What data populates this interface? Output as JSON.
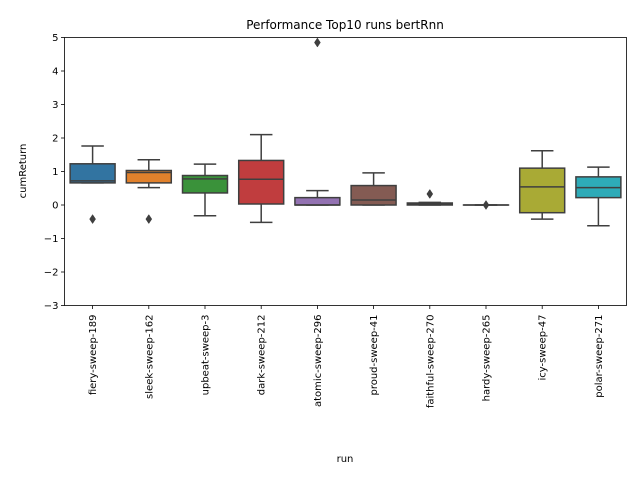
{
  "chart_data": {
    "type": "box",
    "title": "Performance Top10 runs bertRnn",
    "xlabel": "run",
    "ylabel": "cumReturn",
    "ylim": [
      -3,
      5
    ],
    "yticks": [
      -3,
      -2,
      -1,
      0,
      1,
      2,
      3,
      4,
      5
    ],
    "grid": false,
    "boxes": [
      {
        "category": "fiery-sweep-189",
        "color": "#3274a1",
        "whisker_low": 0.66,
        "q1": 0.66,
        "median": 0.72,
        "q3": 1.23,
        "whisker_high": 1.76,
        "outliers": [
          -0.42
        ]
      },
      {
        "category": "sleek-sweep-162",
        "color": "#e1812c",
        "whisker_low": 0.52,
        "q1": 0.66,
        "median": 0.97,
        "q3": 1.03,
        "whisker_high": 1.35,
        "outliers": [
          -0.42
        ]
      },
      {
        "category": "upbeat-sweep-3",
        "color": "#3a923a",
        "whisker_low": -0.32,
        "q1": 0.36,
        "median": 0.78,
        "q3": 0.88,
        "whisker_high": 1.22,
        "outliers": []
      },
      {
        "category": "dark-sweep-212",
        "color": "#c03d3e",
        "whisker_low": -0.52,
        "q1": 0.03,
        "median": 0.77,
        "q3": 1.33,
        "whisker_high": 2.1,
        "outliers": []
      },
      {
        "category": "atomic-sweep-296",
        "color": "#9372b2",
        "whisker_low": 0.0,
        "q1": 0.0,
        "median": 0.0,
        "q3": 0.22,
        "whisker_high": 0.43,
        "outliers": [
          4.85
        ]
      },
      {
        "category": "proud-sweep-41",
        "color": "#845b53",
        "whisker_low": 0.0,
        "q1": 0.0,
        "median": 0.15,
        "q3": 0.58,
        "whisker_high": 0.96,
        "outliers": []
      },
      {
        "category": "faithful-sweep-270",
        "color": "#d684bd",
        "whisker_low": 0.0,
        "q1": 0.0,
        "median": 0.03,
        "q3": 0.06,
        "whisker_high": 0.08,
        "outliers": [
          0.33
        ]
      },
      {
        "category": "hardy-sweep-265",
        "color": "#7f7f7f",
        "whisker_low": 0.0,
        "q1": 0.0,
        "median": 0.0,
        "q3": 0.0,
        "whisker_high": 0.0,
        "outliers": [
          0.0
        ]
      },
      {
        "category": "icy-sweep-47",
        "color": "#a9aa35",
        "whisker_low": -0.42,
        "q1": -0.23,
        "median": 0.54,
        "q3": 1.1,
        "whisker_high": 1.62,
        "outliers": []
      },
      {
        "category": "polar-sweep-271",
        "color": "#2eabb8",
        "whisker_low": -0.62,
        "q1": 0.22,
        "median": 0.52,
        "q3": 0.84,
        "whisker_high": 1.13,
        "outliers": []
      }
    ]
  }
}
